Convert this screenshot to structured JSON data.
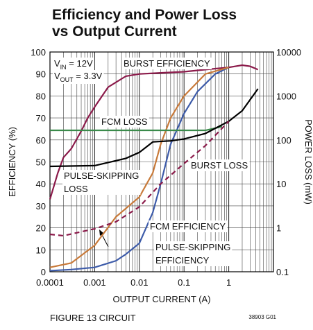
{
  "chart_data": {
    "type": "line",
    "title": "Efficiency and Power Loss\nvs Output Current",
    "xlabel": "OUTPUT CURRENT (A)",
    "ylabel": "EFFICIENCY (%)",
    "y2label": "POWER LOSS (mW)",
    "xscale": "log",
    "y2scale": "log",
    "grid": true,
    "xlim": [
      0.0001,
      10
    ],
    "xticks": [
      0.0001,
      0.001,
      0.01,
      0.1,
      1
    ],
    "ylim": [
      0,
      100
    ],
    "yticks": [
      0,
      10,
      20,
      30,
      40,
      50,
      60,
      70,
      80,
      90,
      100
    ],
    "y2lim": [
      0.1,
      10000
    ],
    "y2ticks": [
      0.1,
      1,
      10,
      100,
      1000,
      10000
    ],
    "annotations": [
      {
        "text": "V",
        "sub": "IN",
        "rest": " = 12V"
      },
      {
        "text": "V",
        "sub": "OUT",
        "rest": " = 3.3V"
      }
    ],
    "figure_caption": "FIGURE 13 CIRCUIT",
    "figure_id": "38903 G01",
    "series": [
      {
        "name": "BURST EFFICIENCY",
        "color": "#8b1a4a",
        "axis": "y",
        "x": [
          0.0001,
          0.00015,
          0.0002,
          0.0003,
          0.0005,
          0.0007,
          0.001,
          0.002,
          0.005,
          0.01,
          0.03,
          0.1,
          0.3,
          1,
          2,
          3,
          4.5
        ],
        "values": [
          33,
          45,
          52,
          56,
          64,
          70,
          75,
          84,
          89,
          90,
          90.5,
          91,
          92,
          93,
          94,
          93.5,
          92
        ]
      },
      {
        "name": "FCM EFFICIENCY",
        "color": "#3d5ba9",
        "axis": "y",
        "x": [
          0.0001,
          0.0003,
          0.001,
          0.003,
          0.005,
          0.01,
          0.02,
          0.03,
          0.05,
          0.1,
          0.2,
          0.5,
          1
        ],
        "values": [
          0.5,
          1,
          2,
          5,
          8,
          13,
          27,
          40,
          58,
          72,
          82,
          90,
          93
        ]
      },
      {
        "name": "PULSE-SKIPPING\nEFFICIENCY",
        "color": "#c87a3a",
        "axis": "y",
        "x": [
          0.0001,
          0.0003,
          0.001,
          0.003,
          0.01,
          0.02,
          0.03,
          0.05,
          0.1,
          0.3,
          1
        ],
        "values": [
          2,
          4,
          12,
          25,
          34,
          45,
          58,
          70,
          80,
          90,
          93
        ]
      },
      {
        "name": "FCM LOSS",
        "color": "#3a8a4a",
        "axis": "y2",
        "x": [
          0.0001,
          0.3,
          0.7
        ],
        "values": [
          165,
          165,
          200
        ]
      },
      {
        "name": "PULSE-SKIPPING\nLOSS",
        "color": "#000000",
        "axis": "y2",
        "x": [
          0.0001,
          0.001,
          0.005,
          0.01,
          0.02,
          0.05,
          0.1,
          0.3,
          1,
          2,
          4.5
        ],
        "values": [
          25,
          26,
          38,
          52,
          90,
          95,
          105,
          140,
          265,
          460,
          1450
        ]
      },
      {
        "name": "BURST LOSS",
        "color": "#8b1a4a",
        "axis": "y2",
        "dashed": true,
        "x": [
          0.0001,
          0.0002,
          0.001,
          0.003,
          0.01,
          0.03,
          0.1,
          0.3,
          1
        ],
        "values": [
          0.71,
          0.66,
          0.95,
          1.37,
          3.0,
          10,
          29,
          74,
          265
        ]
      }
    ]
  }
}
